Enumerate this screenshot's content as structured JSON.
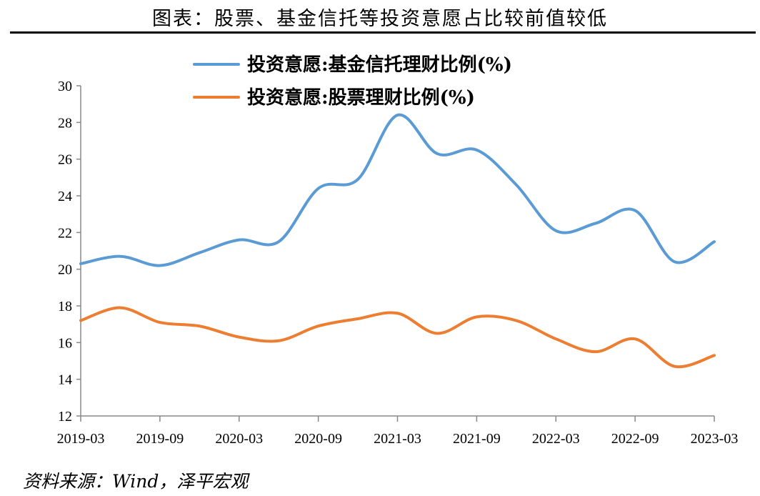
{
  "chart_title": "图表：股票、基金信托等投资意愿占比较前值较低",
  "source": "资料来源：Wind，泽平宏观",
  "chart_data": {
    "type": "line",
    "title": "图表：股票、基金信托等投资意愿占比较前值较低",
    "xlabel": "",
    "ylabel": "",
    "ylim": [
      12,
      30
    ],
    "yticks": [
      12,
      14,
      16,
      18,
      20,
      22,
      24,
      26,
      28,
      30
    ],
    "xtick_labels": [
      "2019-03",
      "2019-09",
      "2020-03",
      "2020-09",
      "2021-03",
      "2021-09",
      "2022-03",
      "2022-09",
      "2023-03"
    ],
    "x": [
      "2019-03",
      "2019-06",
      "2019-09",
      "2019-12",
      "2020-03",
      "2020-06",
      "2020-09",
      "2020-12",
      "2021-03",
      "2021-06",
      "2021-09",
      "2021-12",
      "2022-03",
      "2022-06",
      "2022-09",
      "2022-12",
      "2023-03"
    ],
    "legend_position": "top",
    "grid": false,
    "series": [
      {
        "name": "投资意愿:基金信托理财比例(%)",
        "color": "#5b9bd5",
        "values": [
          20.3,
          20.7,
          20.2,
          20.9,
          21.6,
          21.5,
          24.4,
          24.9,
          28.4,
          26.3,
          26.5,
          24.6,
          22.1,
          22.5,
          23.2,
          20.4,
          21.5
        ]
      },
      {
        "name": "投资意愿:股票理财比例(%)",
        "color": "#ed7d31",
        "values": [
          17.2,
          17.9,
          17.1,
          16.9,
          16.3,
          16.1,
          16.9,
          17.3,
          17.6,
          16.5,
          17.4,
          17.2,
          16.2,
          15.5,
          16.2,
          14.7,
          15.3
        ]
      }
    ]
  }
}
